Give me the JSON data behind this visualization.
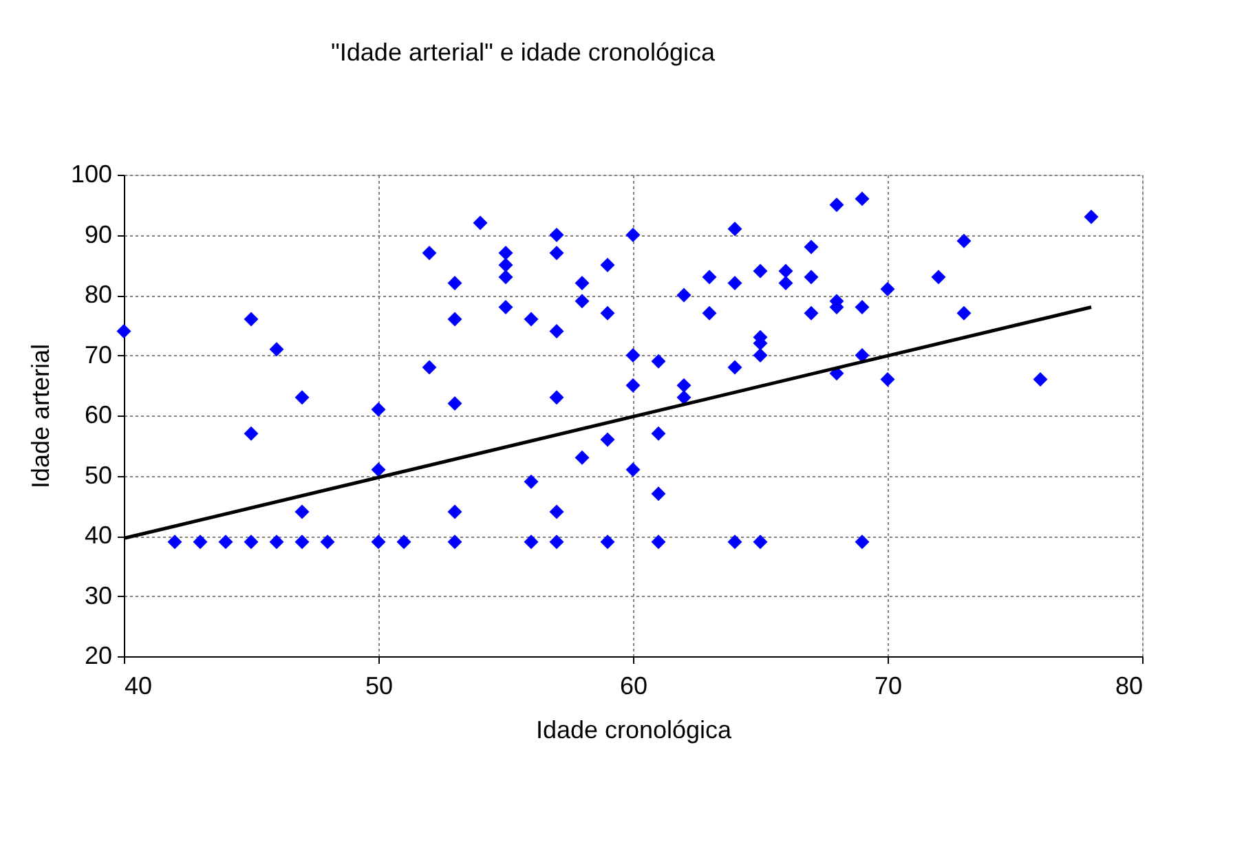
{
  "chart_data": {
    "type": "scatter",
    "title": "\"Idade arterial\" e idade cronológica",
    "xlabel": "Idade cronológica",
    "ylabel": "Idade arterial",
    "xlim": [
      40,
      80
    ],
    "ylim": [
      20,
      100
    ],
    "xticks": [
      40,
      50,
      60,
      70,
      80
    ],
    "yticks": [
      20,
      30,
      40,
      50,
      60,
      70,
      80,
      90,
      100
    ],
    "grid": true,
    "marker": "diamond",
    "series": [
      {
        "color": "#0000ff",
        "x": [
          40,
          42,
          43,
          44,
          45,
          45,
          45,
          46,
          46,
          47,
          47,
          47,
          48,
          50,
          50,
          50,
          51,
          52,
          52,
          53,
          53,
          53,
          53,
          53,
          54,
          55,
          55,
          55,
          55,
          56,
          56,
          56,
          57,
          57,
          57,
          57,
          57,
          57,
          58,
          58,
          58,
          59,
          59,
          59,
          59,
          60,
          60,
          60,
          60,
          61,
          61,
          61,
          61,
          62,
          62,
          62,
          63,
          63,
          64,
          64,
          64,
          64,
          65,
          65,
          65,
          65,
          65,
          66,
          66,
          67,
          67,
          67,
          68,
          68,
          68,
          68,
          69,
          69,
          69,
          69,
          70,
          70,
          72,
          73,
          73,
          76,
          78
        ],
        "values": [
          74,
          39,
          39,
          39,
          39,
          57,
          76,
          39,
          71,
          39,
          44,
          63,
          39,
          39,
          51,
          61,
          39,
          68,
          87,
          39,
          44,
          62,
          76,
          82,
          92,
          83,
          85,
          87,
          78,
          39,
          49,
          76,
          39,
          44,
          63,
          74,
          87,
          90,
          53,
          79,
          82,
          39,
          56,
          77,
          85,
          51,
          65,
          70,
          90,
          39,
          47,
          57,
          69,
          63,
          65,
          80,
          77,
          83,
          39,
          68,
          82,
          91,
          39,
          70,
          72,
          73,
          84,
          82,
          84,
          77,
          83,
          88,
          67,
          78,
          79,
          95,
          39,
          70,
          78,
          96,
          66,
          81,
          83,
          77,
          89,
          66,
          93
        ]
      },
      {
        "type": "line",
        "marker": "none",
        "color": "#000000",
        "x": [
          40,
          78
        ],
        "values": [
          39.6,
          78
        ]
      }
    ]
  }
}
